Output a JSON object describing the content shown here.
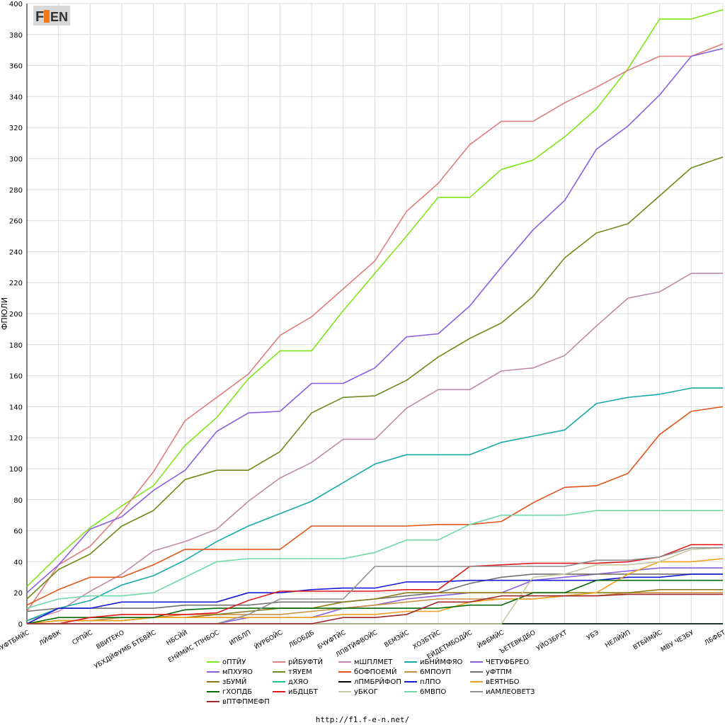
{
  "logo_text": "F1EN",
  "footer_url": "http://f1.f-e-n.net/",
  "chart_data": {
    "type": "line",
    "ylabel": "ФПЮЛИ",
    "xlabel": "",
    "ylim": [
      0,
      400
    ],
    "yticks": [
      0,
      20,
      40,
      60,
      80,
      100,
      120,
      140,
      160,
      180,
      200,
      220,
      240,
      260,
      280,
      300,
      320,
      340,
      360,
      380,
      400
    ],
    "grid": true,
    "legend_position": "bottom",
    "categories": [
      "ФУФТБМЙС",
      "ЛЙФВК",
      "СРПЙС",
      "ВВИТЕКО",
      "УБХДЙФУМБ БТБВЙС",
      "НБСЙЙ",
      "ЕНЙМЙС ТПНБОС",
      "ИПБЛП",
      "ЙУРБОЙС",
      "ЛБОБДБ",
      "БЧУФТЙС",
      "ЛПВТЙФВОЙС",
      "ВЕМЗЙС",
      "ХОЗБТЙС",
      "ЕЙДЕТМБОДЙС",
      "ЙФБМЙС",
      "ЪЕТЕВКДБО",
      "УЙОЗБРХТ",
      "УБЭ",
      "НЕЛЙЙП",
      "ВТБЙМЙС",
      "МВУ ЧЕЗБУ",
      "ЛБФБТ"
    ],
    "series": [
      {
        "name": "оПТЙУ",
        "color": "#7fe619",
        "values": [
          24,
          44,
          62,
          76,
          89,
          115,
          133,
          158,
          176,
          176,
          202,
          226,
          250,
          275,
          275,
          293,
          299,
          314,
          332,
          358,
          390,
          390,
          396
        ]
      },
      {
        "name": "рЙБУФТЙ",
        "color": "#e07e7e",
        "values": [
          8,
          38,
          50,
          72,
          98,
          131,
          146,
          161,
          186,
          198,
          216,
          234,
          266,
          284,
          309,
          324,
          324,
          336,
          346,
          357,
          366,
          366,
          374
        ]
      },
      {
        "name": "мШПЛМЕТ",
        "color": "#c08aa8",
        "values": [
          2,
          8,
          21,
          32,
          47,
          53,
          61,
          79,
          94,
          104,
          119,
          119,
          139,
          151,
          151,
          163,
          165,
          173,
          192,
          210,
          214,
          226,
          226
        ]
      },
      {
        "name": "иБНЙМФЯО",
        "color": "#19a8a8",
        "values": [
          2,
          10,
          15,
          25,
          31,
          41,
          53,
          63,
          71,
          79,
          91,
          103,
          109,
          109,
          109,
          117,
          121,
          125,
          142,
          146,
          148,
          152,
          152
        ]
      },
      {
        "name": "ЧЕТУФБРЕО",
        "color": "#8a5fe0",
        "values": [
          20,
          38,
          61,
          69,
          86,
          99,
          124,
          136,
          137,
          155,
          155,
          165,
          185,
          187,
          205,
          230,
          254,
          273,
          306,
          321,
          341,
          366,
          371
        ]
      },
      {
        "name": "мПХУЯО",
        "color": "#8a5fe0",
        "values": [
          0,
          0,
          0,
          0,
          0,
          0,
          0,
          4,
          4,
          4,
          10,
          12,
          16,
          18,
          20,
          20,
          28,
          30,
          32,
          34,
          36,
          36,
          36
        ]
      },
      {
        "name": "тЯУЕМ",
        "color": "#6e8a19",
        "values": [
          16,
          35,
          45,
          63,
          73,
          93,
          99,
          99,
          111,
          136,
          146,
          147,
          157,
          172,
          184,
          194,
          211,
          236,
          252,
          258,
          276,
          294,
          301
        ]
      },
      {
        "name": "бОФПОЕМЙ",
        "color": "#e05519",
        "values": [
          12,
          22,
          30,
          30,
          38,
          48,
          48,
          48,
          48,
          63,
          63,
          63,
          63,
          64,
          64,
          66,
          78,
          88,
          89,
          97,
          122,
          137,
          140
        ]
      },
      {
        "name": "6МПОУП",
        "color": "#c89040",
        "values": [
          0,
          2,
          2,
          4,
          4,
          6,
          6,
          6,
          6,
          8,
          10,
          12,
          14,
          16,
          16,
          16,
          16,
          18,
          18,
          20,
          20,
          20,
          20
        ]
      },
      {
        "name": "уФТПМ",
        "color": "#707070",
        "values": [
          8,
          10,
          10,
          10,
          10,
          12,
          12,
          12,
          14,
          14,
          14,
          16,
          18,
          20,
          26,
          30,
          32,
          32,
          32,
          32,
          32,
          32,
          32
        ]
      },
      {
        "name": "зБУМЙ",
        "color": "#8a7a19",
        "values": [
          0,
          2,
          2,
          2,
          4,
          4,
          6,
          8,
          10,
          10,
          14,
          16,
          20,
          20,
          20,
          20,
          20,
          20,
          20,
          20,
          22,
          22,
          22
        ]
      },
      {
        "name": "дХЯО",
        "color": "#19c889",
        "values": [
          0,
          0,
          0,
          0,
          0,
          0,
          0,
          0,
          0,
          0,
          0,
          0,
          0,
          0,
          0,
          0,
          0,
          0,
          0,
          0,
          0,
          0,
          0
        ]
      },
      {
        "name": "лПМБРЙФОП",
        "color": "#000000",
        "values": [
          0,
          0,
          0,
          0,
          0,
          0,
          0,
          0,
          0,
          0,
          0,
          0,
          0,
          0,
          0,
          0,
          0,
          0,
          0,
          0,
          0,
          0,
          0
        ]
      },
      {
        "name": "пЛПО",
        "color": "#1919d8",
        "values": [
          0,
          10,
          10,
          14,
          14,
          14,
          14,
          20,
          20,
          22,
          23,
          23,
          27,
          27,
          28,
          28,
          28,
          28,
          28,
          30,
          30,
          32,
          32
        ]
      },
      {
        "name": "вЕЯТНБО",
        "color": "#f0a020",
        "values": [
          0,
          2,
          2,
          2,
          4,
          4,
          4,
          4,
          4,
          4,
          6,
          6,
          8,
          8,
          14,
          16,
          16,
          18,
          20,
          32,
          40,
          40,
          42
        ]
      },
      {
        "name": "гХОПДБ",
        "color": "#0a6a0a",
        "values": [
          0,
          4,
          4,
          4,
          4,
          9,
          10,
          10,
          10,
          10,
          10,
          10,
          10,
          10,
          12,
          12,
          20,
          20,
          28,
          28,
          28,
          28,
          28
        ]
      },
      {
        "name": "иБДЦБТ",
        "color": "#e01919",
        "values": [
          0,
          0,
          4,
          6,
          6,
          6,
          7,
          15,
          21,
          21,
          21,
          21,
          22,
          22,
          37,
          38,
          39,
          39,
          39,
          40,
          43,
          51,
          51
        ]
      },
      {
        "name": "уБКОГ",
        "color": "#c8c8a0",
        "values": [
          0,
          0,
          0,
          0,
          0,
          0,
          0,
          0,
          0,
          0,
          0,
          0,
          0,
          0,
          0,
          0,
          30,
          32,
          38,
          38,
          40,
          48,
          49
        ]
      },
      {
        "name": "6МВПО",
        "color": "#70d8a8",
        "values": [
          10,
          16,
          18,
          18,
          20,
          30,
          40,
          42,
          42,
          42,
          42,
          46,
          54,
          54,
          64,
          70,
          70,
          70,
          73,
          73,
          73,
          73,
          73
        ]
      },
      {
        "name": "иАМЛЕОВЕТЗ",
        "color": "#909090",
        "values": [
          0,
          0,
          0,
          0,
          0,
          0,
          0,
          6,
          16,
          16,
          16,
          37,
          37,
          37,
          37,
          37,
          37,
          37,
          41,
          41,
          43,
          49,
          49
        ]
      },
      {
        "name": "вПТФПМЕФП",
        "color": "#a02828",
        "values": [
          0,
          0,
          0,
          0,
          0,
          0,
          0,
          0,
          0,
          0,
          4,
          4,
          6,
          14,
          14,
          18,
          18,
          18,
          18,
          19,
          19,
          19,
          19
        ]
      }
    ]
  }
}
